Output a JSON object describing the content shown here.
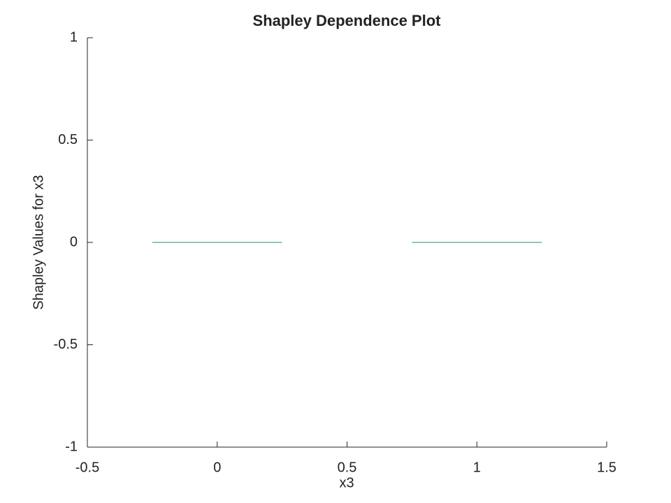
{
  "chart_data": {
    "type": "line",
    "title": "Shapley Dependence Plot",
    "x_label": "x3",
    "y_label": "Shapley Values for x3",
    "x": [
      -0.25,
      0.25,
      null,
      0.75,
      1.25
    ],
    "series": [
      {
        "color": "#1b8f73",
        "values": [
          0,
          0,
          null,
          0,
          0
        ]
      }
    ],
    "xlim": [
      -0.5,
      1.5
    ],
    "xticks": [
      -0.5,
      0,
      0.5,
      1,
      1.5
    ],
    "ylim": [
      -1,
      1
    ],
    "yticks": [
      -1,
      -0.5,
      0,
      0.5,
      1
    ],
    "grid": false
  }
}
